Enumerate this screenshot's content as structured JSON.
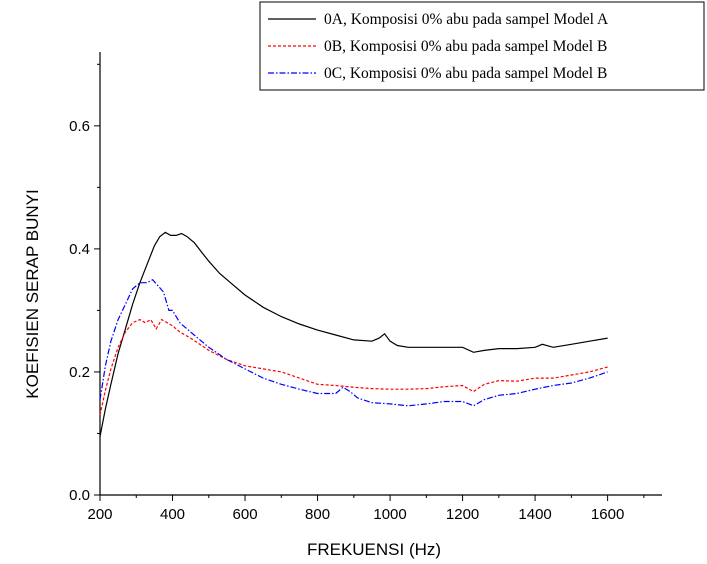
{
  "chart_data": {
    "type": "line",
    "xlabel": "FREKUENSI (Hz)",
    "ylabel": "KOEFISIEN SERAP BUNYI",
    "xlim": [
      200,
      1750
    ],
    "ylim": [
      0,
      0.72
    ],
    "x_ticks": [
      200,
      400,
      600,
      800,
      1000,
      1200,
      1400,
      1600
    ],
    "x_tick_labels": [
      "200",
      "400",
      "600",
      "800",
      "1000",
      "1200",
      "1400",
      "1600"
    ],
    "y_ticks": [
      0.0,
      0.2,
      0.4,
      0.6
    ],
    "y_tick_labels": [
      "0.0",
      "0.2",
      "0.4",
      "0.6"
    ],
    "grid": false,
    "legend_position": "top-right",
    "series": [
      {
        "name": "0A, Komposisi 0% abu pada sampel Model A",
        "color": "#000000",
        "style": "solid",
        "x": [
          200,
          215,
          230,
          250,
          270,
          290,
          310,
          330,
          350,
          365,
          380,
          395,
          410,
          425,
          440,
          460,
          480,
          500,
          530,
          560,
          600,
          650,
          700,
          750,
          800,
          850,
          900,
          950,
          970,
          985,
          1000,
          1020,
          1050,
          1100,
          1150,
          1200,
          1230,
          1260,
          1300,
          1350,
          1400,
          1420,
          1450,
          1500,
          1550,
          1600
        ],
        "y": [
          0.095,
          0.14,
          0.18,
          0.23,
          0.27,
          0.31,
          0.345,
          0.375,
          0.405,
          0.42,
          0.427,
          0.422,
          0.422,
          0.425,
          0.42,
          0.41,
          0.395,
          0.38,
          0.36,
          0.345,
          0.325,
          0.305,
          0.29,
          0.278,
          0.268,
          0.26,
          0.252,
          0.25,
          0.255,
          0.262,
          0.25,
          0.243,
          0.24,
          0.24,
          0.24,
          0.24,
          0.232,
          0.235,
          0.238,
          0.238,
          0.24,
          0.245,
          0.24,
          0.245,
          0.25,
          0.255
        ]
      },
      {
        "name": "0B, Komposisi 0% abu pada sampel Model B",
        "color": "#ff0000",
        "style": "dashed",
        "x": [
          200,
          215,
          230,
          250,
          270,
          290,
          310,
          325,
          340,
          355,
          370,
          385,
          400,
          420,
          450,
          500,
          550,
          600,
          650,
          700,
          750,
          800,
          850,
          900,
          950,
          1000,
          1050,
          1100,
          1150,
          1200,
          1230,
          1260,
          1300,
          1350,
          1400,
          1450,
          1500,
          1550,
          1600
        ],
        "y": [
          0.13,
          0.17,
          0.205,
          0.24,
          0.265,
          0.28,
          0.285,
          0.28,
          0.285,
          0.27,
          0.285,
          0.28,
          0.275,
          0.265,
          0.255,
          0.235,
          0.22,
          0.21,
          0.205,
          0.2,
          0.19,
          0.18,
          0.178,
          0.175,
          0.173,
          0.172,
          0.172,
          0.173,
          0.176,
          0.178,
          0.168,
          0.18,
          0.186,
          0.185,
          0.19,
          0.19,
          0.195,
          0.2,
          0.208
        ]
      },
      {
        "name": "0C, Komposisi 0% abu pada sampel Model B",
        "color": "#0000ff",
        "style": "dashdot",
        "x": [
          200,
          215,
          230,
          250,
          270,
          290,
          310,
          330,
          345,
          360,
          375,
          390,
          400,
          420,
          450,
          500,
          550,
          600,
          650,
          700,
          750,
          800,
          850,
          870,
          890,
          910,
          950,
          1000,
          1050,
          1100,
          1150,
          1200,
          1230,
          1260,
          1300,
          1350,
          1400,
          1450,
          1500,
          1550,
          1600
        ],
        "y": [
          0.155,
          0.21,
          0.25,
          0.285,
          0.31,
          0.335,
          0.345,
          0.345,
          0.35,
          0.34,
          0.33,
          0.3,
          0.3,
          0.28,
          0.265,
          0.24,
          0.22,
          0.205,
          0.19,
          0.18,
          0.172,
          0.165,
          0.165,
          0.175,
          0.168,
          0.158,
          0.15,
          0.148,
          0.145,
          0.148,
          0.152,
          0.152,
          0.145,
          0.155,
          0.162,
          0.165,
          0.172,
          0.178,
          0.182,
          0.19,
          0.2
        ]
      }
    ]
  }
}
